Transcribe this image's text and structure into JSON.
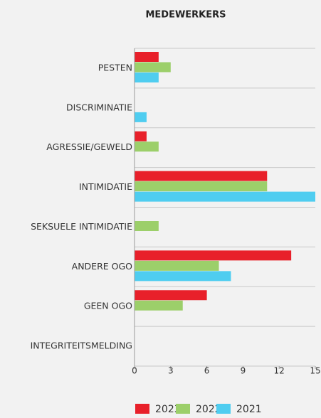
{
  "chart_data": {
    "type": "barh",
    "title": "MEDEWERKERS",
    "categories": [
      "PESTEN",
      "DISCRIMINATIE",
      "AGRESSIE/GEWELD",
      "INTIMIDATIE",
      "SEKSUELE INTIMIDATIE",
      "ANDERE OGO",
      "GEEN OGO",
      "INTEGRITEITSMELDING"
    ],
    "series": [
      {
        "name": "2023",
        "color": "#e8202a",
        "values": [
          2,
          0,
          1,
          11,
          0,
          13,
          6,
          0
        ]
      },
      {
        "name": "2022",
        "color": "#9ccf6a",
        "values": [
          3,
          0,
          2,
          11,
          2,
          7,
          4,
          0
        ]
      },
      {
        "name": "2021",
        "color": "#4fcdf0",
        "values": [
          2,
          1,
          0,
          15,
          0,
          8,
          0,
          0
        ]
      }
    ],
    "xlim": [
      0,
      15
    ],
    "xticks": [
      0,
      3,
      6,
      9,
      12,
      15
    ]
  }
}
